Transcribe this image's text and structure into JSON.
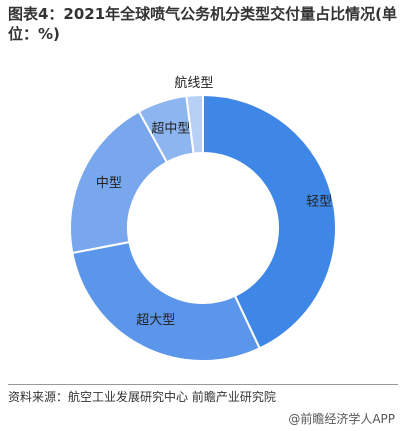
{
  "chart_data": {
    "type": "donut",
    "title": "图表4：2021年全球喷气公务机分类型交付量占比情况(单位：%)",
    "categories": [
      "轻型",
      "超大型",
      "中型",
      "超中型",
      "航线型"
    ],
    "values": [
      43,
      29,
      20,
      6,
      2
    ],
    "colors": [
      "#3f87e6",
      "#5b96ea",
      "#78a7ee",
      "#8db5f0",
      "#b7d0f5"
    ],
    "source": "资料来源：航空工业发展研究中心 前瞻产业研究院",
    "brand": "@前瞻经济学人APP"
  }
}
